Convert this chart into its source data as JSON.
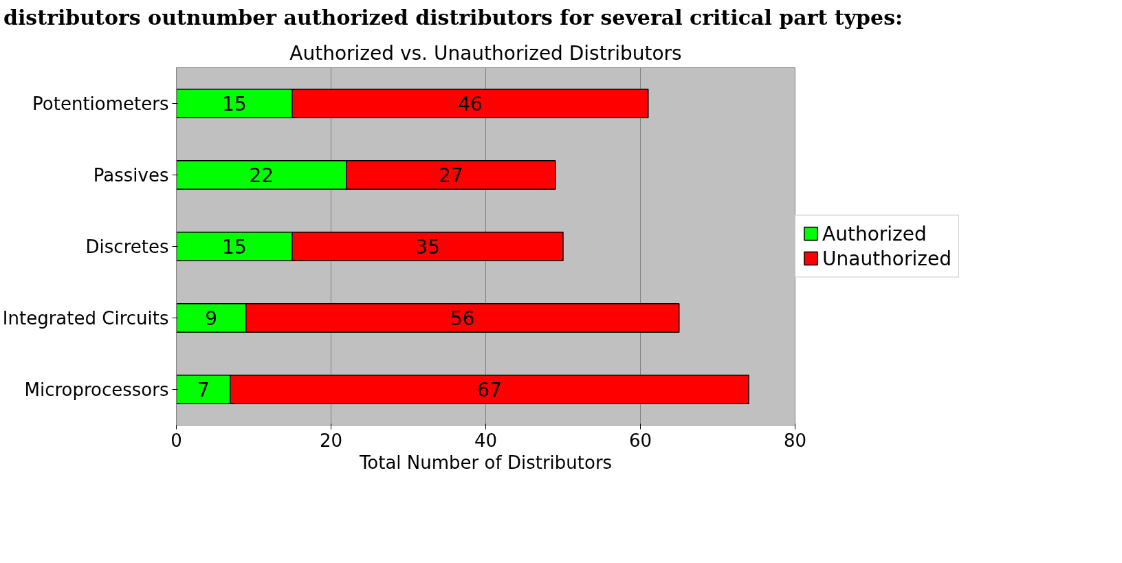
{
  "chart_data": {
    "type": "bar",
    "orientation": "horizontal",
    "stacked": true,
    "annotations": [
      "distributors outnumber authorized distributors for several critical part types:"
    ],
    "title": "Authorized vs. Unauthorized Distributors",
    "xlabel": "Total Number of Distributors",
    "categories": [
      "Potentiometers",
      "Passives",
      "Discretes",
      "Integrated Circuits",
      "Microprocessors"
    ],
    "series": [
      {
        "name": "Authorized",
        "color": "#00ff00",
        "values": [
          15,
          22,
          15,
          9,
          7
        ]
      },
      {
        "name": "Unauthorized",
        "color": "#ff0000",
        "values": [
          46,
          27,
          35,
          56,
          67
        ]
      }
    ],
    "xlim": [
      0,
      80
    ],
    "xticks": [
      0,
      20,
      40,
      60,
      80
    ],
    "grid": "x",
    "legend": "right",
    "data_labels": true
  }
}
